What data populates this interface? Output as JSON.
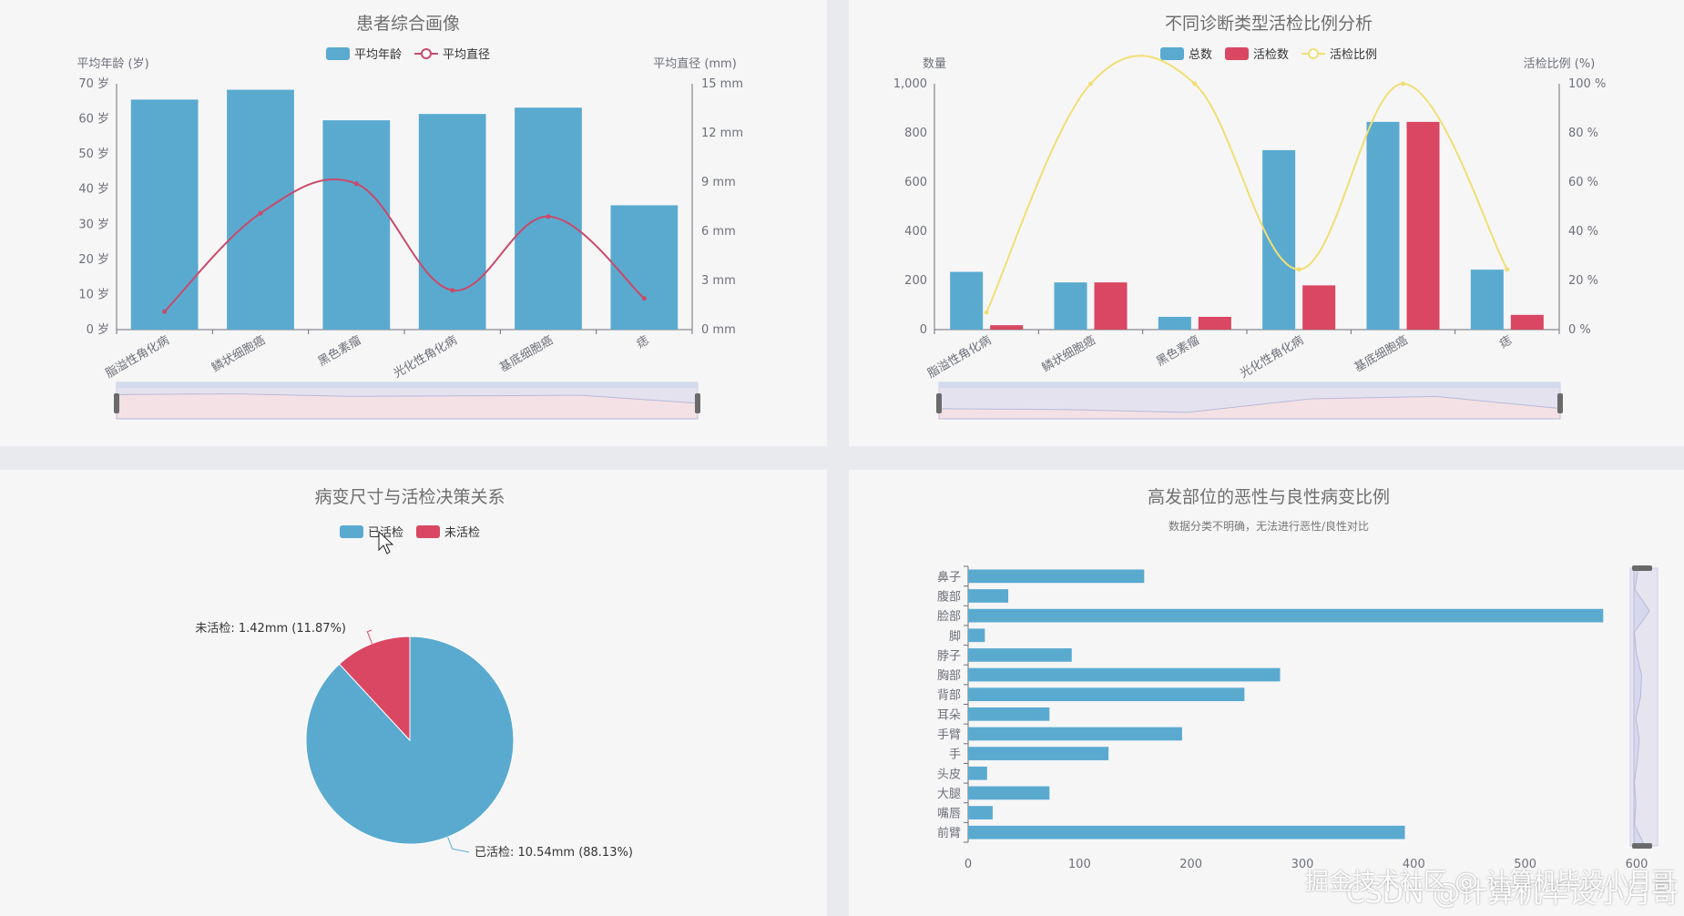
{
  "colors": {
    "blue": "#5aaad0",
    "red": "#d94763",
    "yellow": "#f0df74",
    "line_red": "#c94a6a"
  },
  "chart_data": [
    {
      "type": "bar",
      "title": "患者综合画像",
      "categories": [
        "脂溢性角化病",
        "鳞状细胞癌",
        "黑色素瘤",
        "光化性角化病",
        "基底细胞癌",
        "痣"
      ],
      "series": [
        {
          "name": "平均年龄",
          "type": "bar",
          "axis": "left",
          "values": [
            65.5,
            68.3,
            59.6,
            61.4,
            63.2,
            35.4
          ]
        },
        {
          "name": "平均直径",
          "type": "line",
          "axis": "right",
          "smooth": true,
          "values": [
            1.1,
            7.1,
            8.9,
            2.4,
            6.9,
            1.9
          ]
        }
      ],
      "ylabel": "平均年龄 (岁)",
      "y2label": "平均直径 (mm)",
      "ylim": [
        0,
        70
      ],
      "yticks": [
        "0 岁",
        "10 岁",
        "20 岁",
        "30 岁",
        "40 岁",
        "50 岁",
        "60 岁",
        "70 岁"
      ],
      "y2lim": [
        0,
        15
      ],
      "y2ticks": [
        "0 mm",
        "3 mm",
        "6 mm",
        "9 mm",
        "12 mm",
        "15 mm"
      ],
      "legend": "top-center",
      "datazoom": "bottom"
    },
    {
      "type": "bar",
      "title": "不同诊断类型活检比例分析",
      "categories": [
        "脂溢性角化病",
        "鳞状细胞癌",
        "黑色素瘤",
        "光化性角化病",
        "基底细胞癌",
        "痣"
      ],
      "series": [
        {
          "name": "总数",
          "type": "bar",
          "axis": "left",
          "values": [
            235,
            192,
            52,
            730,
            845,
            244
          ]
        },
        {
          "name": "活检数",
          "type": "bar",
          "axis": "left",
          "values": [
            18,
            192,
            52,
            180,
            845,
            60
          ]
        },
        {
          "name": "活检比例",
          "type": "line",
          "axis": "right",
          "smooth": true,
          "values": [
            7,
            100,
            100,
            24.5,
            100,
            24.5
          ]
        }
      ],
      "ylabel": "数量",
      "y2label": "活检比例 (%)",
      "ylim": [
        0,
        1000
      ],
      "yticks": [
        "0",
        "200",
        "400",
        "600",
        "800",
        "1,000"
      ],
      "y2lim": [
        0,
        100
      ],
      "y2ticks": [
        "0 %",
        "20 %",
        "40 %",
        "60 %",
        "80 %",
        "100 %"
      ],
      "legend": "top-center",
      "datazoom": "bottom"
    },
    {
      "type": "pie",
      "title": "病变尺寸与活检决策关系",
      "slices": [
        {
          "name": "已活检",
          "value": 10.54,
          "label": "已活检: 10.54mm (88.13%)"
        },
        {
          "name": "未活检",
          "value": 1.42,
          "label": "未活检: 1.42mm (11.87%)"
        }
      ],
      "legend": "top-center"
    },
    {
      "type": "bar",
      "orientation": "horizontal",
      "title": "高发部位的恶性与良性病变比例",
      "subtitle": "数据分类不明确，无法进行恶性/良性对比",
      "categories": [
        "鼻子",
        "腹部",
        "脸部",
        "脚",
        "脖子",
        "胸部",
        "背部",
        "耳朵",
        "手臂",
        "手",
        "头皮",
        "大腿",
        "嘴唇",
        "前臂"
      ],
      "values": [
        158,
        36,
        570,
        15,
        93,
        280,
        248,
        73,
        192,
        126,
        17,
        73,
        22,
        392
      ],
      "xlim": [
        0,
        600
      ],
      "xticks": [
        "0",
        "100",
        "200",
        "300",
        "400",
        "500",
        "600"
      ],
      "datazoom": "right"
    }
  ],
  "watermark": {
    "back": "CSDN @计算机毕设小月哥",
    "front": "掘金技术社区 @ 计算机毕设小月哥"
  }
}
